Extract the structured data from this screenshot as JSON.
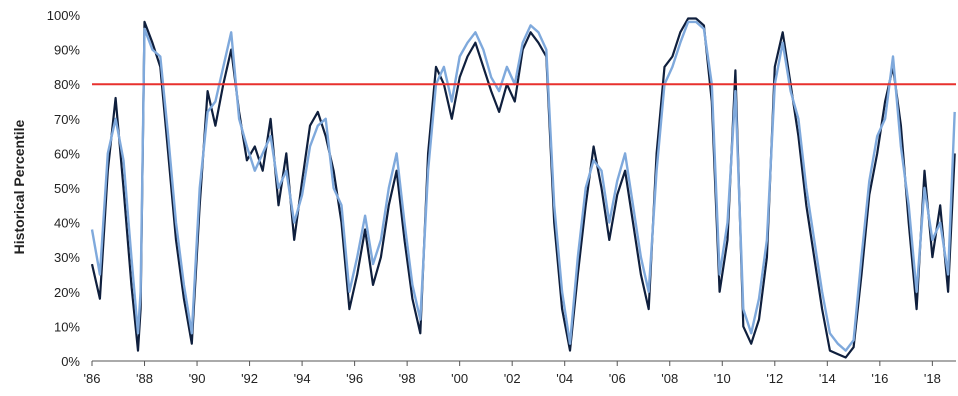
{
  "chart_data": {
    "type": "line",
    "title": "",
    "xlabel": "",
    "ylabel": "Historical Percentile",
    "xlim": [
      1986,
      2018.9
    ],
    "ylim": [
      0,
      100
    ],
    "y_ticks": [
      0,
      10,
      20,
      30,
      40,
      50,
      60,
      70,
      80,
      90,
      100
    ],
    "y_tick_labels": [
      "0%",
      "10%",
      "20%",
      "30%",
      "40%",
      "50%",
      "60%",
      "70%",
      "80%",
      "90%",
      "100%"
    ],
    "x_ticks": [
      1986,
      1988,
      1990,
      1992,
      1994,
      1996,
      1998,
      2000,
      2002,
      2004,
      2006,
      2008,
      2010,
      2012,
      2014,
      2016,
      2018
    ],
    "x_tick_labels": [
      "'86",
      "'88",
      "'90",
      "'92",
      "'94",
      "'96",
      "'98",
      "'00",
      "'02",
      "'04",
      "'06",
      "'08",
      "'10",
      "'12",
      "'14",
      "'16",
      "'18"
    ],
    "grid": false,
    "legend": "none",
    "reference_line": {
      "y": 80,
      "color": "#e8312e"
    },
    "series": [
      {
        "color": "#0f1f3d",
        "x": [
          1986.0,
          1986.3,
          1986.6,
          1986.9,
          1987.2,
          1987.5,
          1987.75,
          1987.85,
          1988.0,
          1988.3,
          1988.6,
          1988.9,
          1989.2,
          1989.5,
          1989.8,
          1990.1,
          1990.4,
          1990.7,
          1991.0,
          1991.3,
          1991.6,
          1991.9,
          1992.2,
          1992.5,
          1992.8,
          1993.1,
          1993.4,
          1993.7,
          1994.0,
          1994.3,
          1994.6,
          1994.9,
          1995.2,
          1995.5,
          1995.8,
          1996.1,
          1996.4,
          1996.7,
          1997.0,
          1997.3,
          1997.6,
          1997.9,
          1998.2,
          1998.5,
          1998.8,
          1999.1,
          1999.4,
          1999.7,
          2000.0,
          2000.3,
          2000.6,
          2000.9,
          2001.2,
          2001.5,
          2001.8,
          2002.1,
          2002.4,
          2002.7,
          2003.0,
          2003.3,
          2003.6,
          2003.9,
          2004.2,
          2004.5,
          2004.8,
          2005.1,
          2005.4,
          2005.7,
          2006.0,
          2006.3,
          2006.6,
          2006.9,
          2007.2,
          2007.5,
          2007.8,
          2008.1,
          2008.4,
          2008.7,
          2009.0,
          2009.3,
          2009.6,
          2009.9,
          2010.2,
          2010.5,
          2010.8,
          2011.1,
          2011.4,
          2011.7,
          2012.0,
          2012.3,
          2012.6,
          2012.9,
          2013.2,
          2013.5,
          2013.8,
          2014.1,
          2014.4,
          2014.7,
          2015.0,
          2015.3,
          2015.6,
          2015.9,
          2016.2,
          2016.5,
          2016.8,
          2017.1,
          2017.4,
          2017.7,
          2018.0,
          2018.3,
          2018.6,
          2018.85
        ],
        "y": [
          28,
          18,
          55,
          76,
          50,
          22,
          3,
          15,
          98,
          92,
          85,
          60,
          35,
          18,
          5,
          45,
          78,
          68,
          80,
          90,
          72,
          58,
          62,
          55,
          70,
          45,
          60,
          35,
          52,
          68,
          72,
          65,
          55,
          40,
          15,
          25,
          38,
          22,
          30,
          45,
          55,
          35,
          18,
          8,
          60,
          85,
          80,
          70,
          82,
          88,
          92,
          85,
          78,
          72,
          80,
          75,
          90,
          95,
          92,
          88,
          40,
          15,
          3,
          25,
          45,
          62,
          50,
          35,
          48,
          55,
          40,
          25,
          15,
          60,
          85,
          88,
          95,
          99,
          99,
          97,
          75,
          20,
          35,
          84,
          10,
          5,
          12,
          30,
          85,
          95,
          80,
          65,
          45,
          30,
          15,
          3,
          2,
          1,
          4,
          25,
          48,
          60,
          75,
          85,
          68,
          40,
          15,
          55,
          30,
          45,
          20,
          60
        ]
      },
      {
        "color": "#7fa9dc",
        "x": [
          1986.0,
          1986.3,
          1986.6,
          1986.9,
          1987.2,
          1987.5,
          1987.75,
          1987.85,
          1988.0,
          1988.3,
          1988.6,
          1988.9,
          1989.2,
          1989.5,
          1989.8,
          1990.1,
          1990.4,
          1990.7,
          1991.0,
          1991.3,
          1991.6,
          1991.9,
          1992.2,
          1992.5,
          1992.8,
          1993.1,
          1993.4,
          1993.7,
          1994.0,
          1994.3,
          1994.6,
          1994.9,
          1995.2,
          1995.5,
          1995.8,
          1996.1,
          1996.4,
          1996.7,
          1997.0,
          1997.3,
          1997.6,
          1997.9,
          1998.2,
          1998.5,
          1998.8,
          1999.1,
          1999.4,
          1999.7,
          2000.0,
          2000.3,
          2000.6,
          2000.9,
          2001.2,
          2001.5,
          2001.8,
          2002.1,
          2002.4,
          2002.7,
          2003.0,
          2003.3,
          2003.6,
          2003.9,
          2004.2,
          2004.5,
          2004.8,
          2005.1,
          2005.4,
          2005.7,
          2006.0,
          2006.3,
          2006.6,
          2006.9,
          2007.2,
          2007.5,
          2007.8,
          2008.1,
          2008.4,
          2008.7,
          2009.0,
          2009.3,
          2009.6,
          2009.9,
          2010.2,
          2010.5,
          2010.8,
          2011.1,
          2011.4,
          2011.7,
          2012.0,
          2012.3,
          2012.6,
          2012.9,
          2013.2,
          2013.5,
          2013.8,
          2014.1,
          2014.4,
          2014.7,
          2015.0,
          2015.3,
          2015.6,
          2015.9,
          2016.2,
          2016.5,
          2016.8,
          2017.1,
          2017.4,
          2017.7,
          2018.0,
          2018.3,
          2018.6,
          2018.85
        ],
        "y": [
          38,
          25,
          60,
          70,
          58,
          30,
          8,
          20,
          96,
          90,
          88,
          65,
          40,
          22,
          8,
          50,
          72,
          75,
          85,
          95,
          70,
          62,
          55,
          60,
          65,
          50,
          55,
          40,
          48,
          62,
          68,
          70,
          50,
          45,
          20,
          30,
          42,
          28,
          35,
          50,
          60,
          40,
          22,
          12,
          55,
          80,
          85,
          75,
          88,
          92,
          95,
          90,
          82,
          78,
          85,
          80,
          92,
          97,
          95,
          90,
          45,
          20,
          5,
          30,
          50,
          58,
          55,
          40,
          52,
          60,
          45,
          30,
          20,
          55,
          80,
          85,
          92,
          98,
          98,
          96,
          80,
          25,
          40,
          78,
          15,
          8,
          18,
          35,
          80,
          92,
          78,
          70,
          50,
          35,
          20,
          8,
          5,
          3,
          6,
          30,
          52,
          65,
          70,
          88,
          62,
          45,
          20,
          50,
          35,
          40,
          25,
          72
        ]
      }
    ]
  }
}
